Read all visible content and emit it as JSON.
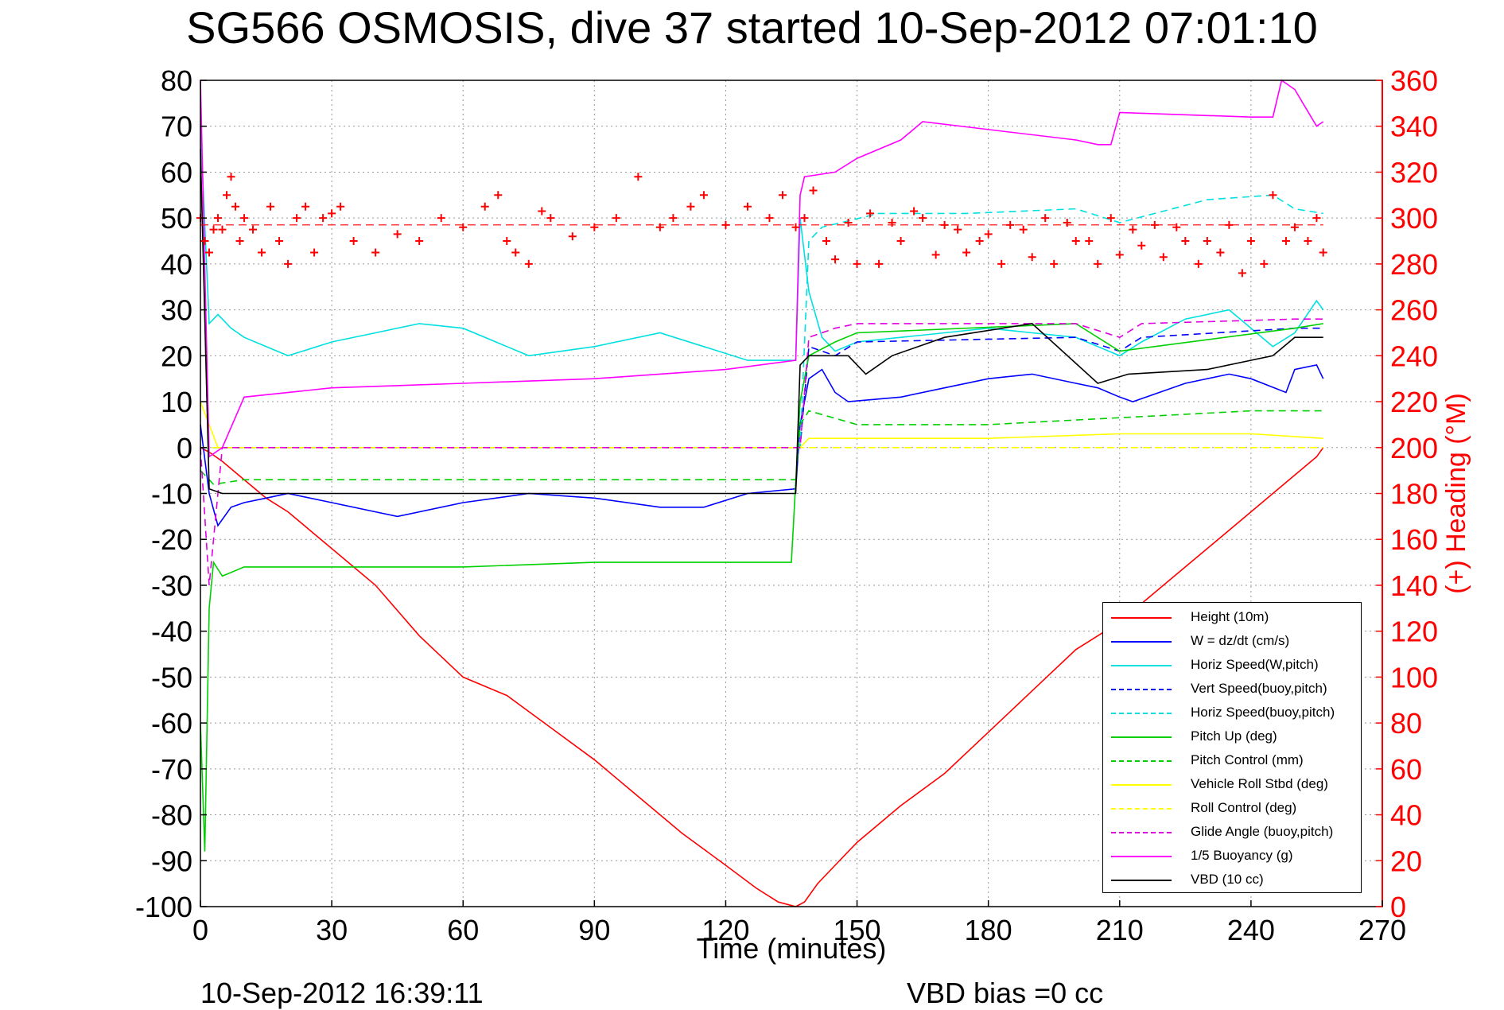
{
  "header": {
    "title": "SG566 OSMOSIS, dive 37 started 10-Sep-2012 07:01:10"
  },
  "footer": {
    "timestamp": "10-Sep-2012 16:39:11",
    "vbd_bias": "VBD bias =0 cc"
  },
  "chart_data": {
    "type": "line",
    "title": "SG566 OSMOSIS, dive 37 started 10-Sep-2012 07:01:10",
    "xlabel": "Time (minutes)",
    "ylabel_left": "",
    "ylabel_right": "(+) Heading (°M)",
    "xlim": [
      0,
      270
    ],
    "ylim_left": [
      -100,
      80
    ],
    "ylim_right": [
      0,
      360
    ],
    "x_ticks": [
      "0",
      "30",
      "60",
      "90",
      "120",
      "150",
      "180",
      "210",
      "240",
      "270"
    ],
    "y_ticks_left": [
      "80",
      "70",
      "60",
      "50",
      "40",
      "30",
      "20",
      "10",
      "0",
      "-10",
      "-20",
      "-30",
      "-40",
      "-50",
      "-60",
      "-70",
      "-80",
      "-90",
      "-100"
    ],
    "y_ticks_right": [
      "360",
      "340",
      "320",
      "300",
      "280",
      "260",
      "240",
      "220",
      "200",
      "180",
      "160",
      "140",
      "120",
      "100",
      "80",
      "60",
      "40",
      "20",
      "0"
    ],
    "grid": true,
    "legend_position": "lower-right",
    "heading_reference": 297,
    "series": [
      {
        "name": "Height (10m)",
        "color": "#ff0000",
        "style": "solid",
        "axis": "left",
        "x": [
          0,
          2,
          5,
          10,
          15,
          20,
          25,
          30,
          40,
          50,
          60,
          70,
          80,
          90,
          100,
          110,
          120,
          127,
          132,
          136,
          138,
          141,
          145,
          150,
          160,
          170,
          180,
          190,
          200,
          210,
          220,
          230,
          240,
          245,
          250,
          255,
          256.5
        ],
        "y": [
          0,
          -1,
          -3,
          -7,
          -11,
          -14,
          -18,
          -22,
          -30,
          -41,
          -50,
          -54,
          -61,
          -68,
          -76,
          -84,
          -91,
          -96,
          -99,
          -100,
          -99,
          -95,
          -91,
          -86,
          -78,
          -71,
          -62,
          -53,
          -44,
          -38,
          -30,
          -22,
          -14,
          -10,
          -6,
          -2,
          0
        ]
      },
      {
        "name": "W = dz/dt (cm/s)",
        "color": "#0000ff",
        "style": "solid",
        "axis": "left",
        "x": [
          0,
          2,
          4,
          7,
          10,
          15,
          20,
          30,
          40,
          45,
          60,
          75,
          90,
          105,
          115,
          125,
          136,
          137,
          139,
          142,
          145,
          148,
          160,
          170,
          180,
          190,
          200,
          205,
          210,
          213,
          225,
          235,
          240,
          248,
          250,
          255,
          256.5
        ],
        "y": [
          5,
          -10,
          -17,
          -13,
          -12,
          -11,
          -10,
          -12,
          -14,
          -15,
          -12,
          -10,
          -11,
          -13,
          -13,
          -10,
          -9,
          5,
          15,
          17,
          12,
          10,
          11,
          13,
          15,
          16,
          14,
          13,
          11,
          10,
          14,
          16,
          15,
          12,
          17,
          18,
          15
        ]
      },
      {
        "name": "Horiz Speed(W,pitch)",
        "color": "#00e0e0",
        "style": "solid",
        "axis": "left",
        "x": [
          0,
          2,
          4,
          7,
          10,
          15,
          20,
          30,
          40,
          50,
          60,
          75,
          90,
          105,
          115,
          125,
          136,
          137,
          139,
          142,
          145,
          150,
          160,
          170,
          180,
          190,
          200,
          210,
          215,
          225,
          235,
          245,
          250,
          255,
          256.5
        ],
        "y": [
          70,
          27,
          29,
          26,
          24,
          22,
          20,
          23,
          25,
          27,
          26,
          20,
          22,
          25,
          22,
          19,
          19,
          50,
          34,
          24,
          21,
          23,
          24,
          25,
          26,
          25,
          24,
          20,
          23,
          28,
          30,
          22,
          25,
          32,
          30
        ]
      },
      {
        "name": "Vert Speed(buoy,pitch)",
        "color": "#0000ff",
        "style": "dashed",
        "axis": "left",
        "x": [
          0,
          137,
          139,
          145,
          150,
          200,
          210,
          215,
          250,
          256.5
        ],
        "y": [
          0,
          0,
          22,
          20,
          23,
          24,
          21,
          24,
          26,
          26
        ]
      },
      {
        "name": "Horiz Speed(buoy,pitch)",
        "color": "#00e0e0",
        "style": "dashed",
        "axis": "left",
        "x": [
          0,
          137,
          139,
          142,
          155,
          175,
          200,
          210,
          230,
          245,
          250,
          256.5
        ],
        "y": [
          0,
          0,
          45,
          48,
          51,
          51,
          52,
          49,
          54,
          55,
          52,
          51
        ]
      },
      {
        "name": "Pitch Up (deg)",
        "color": "#00d000",
        "style": "solid",
        "axis": "left",
        "x": [
          0,
          1,
          2,
          3,
          5,
          10,
          20,
          30,
          45,
          60,
          90,
          120,
          135,
          137,
          139,
          145,
          150,
          200,
          210,
          250,
          256.5
        ],
        "y": [
          -60,
          -88,
          -35,
          -25,
          -28,
          -26,
          -26,
          -26,
          -26,
          -26,
          -25,
          -25,
          -25,
          10,
          20,
          23,
          25,
          27,
          21,
          26,
          27
        ]
      },
      {
        "name": "Pitch Control (mm)",
        "color": "#00d000",
        "style": "dashed",
        "axis": "left",
        "x": [
          0,
          3,
          10,
          20,
          40,
          60,
          100,
          136,
          137,
          139,
          150,
          180,
          200,
          220,
          240,
          256.5
        ],
        "y": [
          -5,
          -8,
          -7,
          -7,
          -7,
          -7,
          -7,
          -7,
          5,
          8,
          5,
          5,
          6,
          7,
          8,
          8
        ]
      },
      {
        "name": "Vehicle Roll Stbd (deg)",
        "color": "#ffff00",
        "style": "solid",
        "axis": "left",
        "x": [
          0,
          4,
          20,
          60,
          120,
          137,
          139,
          150,
          180,
          210,
          240,
          256.5
        ],
        "y": [
          10,
          0,
          0,
          0,
          0,
          0,
          2,
          2,
          2,
          3,
          3,
          2
        ]
      },
      {
        "name": "Roll Control (deg)",
        "color": "#ffff00",
        "style": "dashed",
        "axis": "left",
        "x": [
          0,
          137,
          139,
          256.5
        ],
        "y": [
          0,
          0,
          0,
          0
        ]
      },
      {
        "name": "Glide Angle (buoy,pitch)",
        "color": "#e000e0",
        "style": "dashed",
        "axis": "left",
        "x": [
          0,
          2,
          3,
          5,
          137,
          139,
          145,
          150,
          200,
          210,
          215,
          250,
          256.5
        ],
        "y": [
          0,
          -30,
          -20,
          0,
          0,
          24,
          26,
          27,
          27,
          24,
          27,
          28,
          28
        ]
      },
      {
        "name": "1/5 Buoyancy (g)",
        "color": "#ff00ff",
        "style": "solid",
        "axis": "left",
        "x": [
          0,
          2,
          5,
          10,
          30,
          60,
          90,
          120,
          136,
          137,
          138,
          145,
          150,
          160,
          165,
          200,
          205,
          208,
          210,
          240,
          245,
          247,
          250,
          255,
          256.5
        ],
        "y": [
          80,
          -2,
          0,
          11,
          13,
          14,
          15,
          17,
          19,
          55,
          59,
          60,
          63,
          67,
          71,
          67,
          66,
          66,
          73,
          72,
          72,
          80,
          78,
          70,
          71
        ]
      },
      {
        "name": "VBD (10 cc)",
        "color": "#000000",
        "style": "solid",
        "axis": "left",
        "x": [
          0,
          2,
          5,
          10,
          30,
          60,
          90,
          120,
          136,
          137,
          139,
          142,
          148,
          152,
          158,
          170,
          190,
          205,
          212,
          230,
          245,
          250,
          256.5
        ],
        "y": [
          65,
          -9,
          -10,
          -10,
          -10,
          -10,
          -10,
          -10,
          -10,
          18,
          20,
          20,
          20,
          16,
          20,
          24,
          27,
          14,
          16,
          17,
          20,
          24,
          24
        ]
      }
    ],
    "heading": {
      "name": "(+) Heading (°M)",
      "color": "#ff0000",
      "marker": "+",
      "axis": "right",
      "x": [
        0,
        1,
        2,
        3,
        4,
        5,
        6,
        7,
        8,
        9,
        10,
        12,
        14,
        16,
        18,
        20,
        22,
        24,
        26,
        28,
        30,
        32,
        35,
        40,
        45,
        50,
        55,
        60,
        65,
        68,
        70,
        72,
        75,
        78,
        80,
        85,
        90,
        95,
        100,
        105,
        108,
        112,
        115,
        120,
        125,
        130,
        133,
        136,
        138,
        140,
        143,
        145,
        148,
        150,
        153,
        155,
        158,
        160,
        163,
        165,
        168,
        170,
        173,
        175,
        178,
        180,
        183,
        185,
        188,
        190,
        193,
        195,
        198,
        200,
        203,
        205,
        208,
        210,
        213,
        215,
        218,
        220,
        223,
        225,
        228,
        230,
        233,
        235,
        238,
        240,
        243,
        245,
        248,
        250,
        253,
        255,
        256.5
      ],
      "y": [
        300,
        290,
        285,
        295,
        300,
        295,
        310,
        318,
        305,
        290,
        300,
        295,
        285,
        305,
        290,
        280,
        300,
        305,
        285,
        300,
        302,
        305,
        290,
        285,
        293,
        290,
        300,
        296,
        305,
        310,
        290,
        285,
        280,
        303,
        300,
        292,
        296,
        300,
        318,
        296,
        300,
        305,
        310,
        297,
        305,
        300,
        310,
        296,
        300,
        312,
        290,
        282,
        298,
        280,
        302,
        280,
        298,
        290,
        303,
        300,
        284,
        297,
        295,
        285,
        290,
        293,
        280,
        297,
        295,
        283,
        300,
        280,
        298,
        290,
        290,
        280,
        300,
        284,
        295,
        288,
        297,
        283,
        296,
        290,
        280,
        290,
        285,
        297,
        276,
        290,
        280,
        310,
        290,
        296,
        290,
        300,
        285
      ]
    }
  },
  "legend": {
    "items": [
      {
        "label": "Height (10m)",
        "color": "#ff0000",
        "style": "solid"
      },
      {
        "label": "W = dz/dt (cm/s)",
        "color": "#0000ff",
        "style": "solid"
      },
      {
        "label": "Horiz Speed(W,pitch)",
        "color": "#00e0e0",
        "style": "solid"
      },
      {
        "label": "Vert Speed(buoy,pitch)",
        "color": "#0000ff",
        "style": "dashed"
      },
      {
        "label": "Horiz Speed(buoy,pitch)",
        "color": "#00e0e0",
        "style": "dashed"
      },
      {
        "label": "Pitch Up (deg)",
        "color": "#00d000",
        "style": "solid"
      },
      {
        "label": "Pitch Control (mm)",
        "color": "#00d000",
        "style": "dashed"
      },
      {
        "label": "Vehicle Roll Stbd (deg)",
        "color": "#ffff00",
        "style": "solid"
      },
      {
        "label": "Roll Control (deg)",
        "color": "#ffff00",
        "style": "dashed"
      },
      {
        "label": "Glide Angle (buoy,pitch)",
        "color": "#e000e0",
        "style": "dashed"
      },
      {
        "label": "1/5 Buoyancy (g)",
        "color": "#ff00ff",
        "style": "solid"
      },
      {
        "label": "VBD (10 cc)",
        "color": "#000000",
        "style": "solid"
      }
    ]
  }
}
